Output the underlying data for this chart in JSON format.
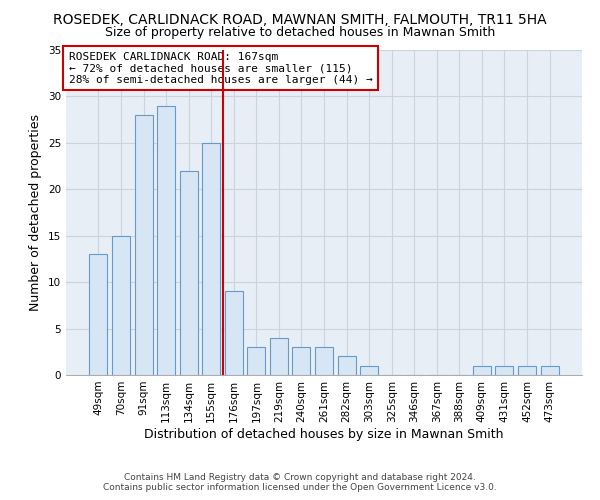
{
  "title": "ROSEDEK, CARLIDNACK ROAD, MAWNAN SMITH, FALMOUTH, TR11 5HA",
  "subtitle": "Size of property relative to detached houses in Mawnan Smith",
  "xlabel": "Distribution of detached houses by size in Mawnan Smith",
  "ylabel": "Number of detached properties",
  "categories": [
    "49sqm",
    "70sqm",
    "91sqm",
    "113sqm",
    "134sqm",
    "155sqm",
    "176sqm",
    "197sqm",
    "219sqm",
    "240sqm",
    "261sqm",
    "282sqm",
    "303sqm",
    "325sqm",
    "346sqm",
    "367sqm",
    "388sqm",
    "409sqm",
    "431sqm",
    "452sqm",
    "473sqm"
  ],
  "values": [
    13,
    15,
    28,
    29,
    22,
    25,
    9,
    3,
    4,
    3,
    3,
    2,
    1,
    0,
    0,
    0,
    0,
    1,
    1,
    1,
    1
  ],
  "bar_color": "#d6e6f5",
  "bar_edge_color": "#6699cc",
  "bar_width": 0.8,
  "ylim": [
    0,
    35
  ],
  "yticks": [
    0,
    5,
    10,
    15,
    20,
    25,
    30,
    35
  ],
  "property_line_x": 5.5,
  "property_line_color": "#cc0000",
  "annotation_title": "ROSEDEK CARLIDNACK ROAD: 167sqm",
  "annotation_line1": "← 72% of detached houses are smaller (115)",
  "annotation_line2": "28% of semi-detached houses are larger (44) →",
  "annotation_box_color": "#ffffff",
  "annotation_box_edge": "#cc0000",
  "footer_line1": "Contains HM Land Registry data © Crown copyright and database right 2024.",
  "footer_line2": "Contains public sector information licensed under the Open Government Licence v3.0.",
  "background_color": "#ffffff",
  "plot_bg_color": "#e8eef5",
  "grid_color": "#c8d4e0",
  "title_fontsize": 10,
  "subtitle_fontsize": 9,
  "axis_label_fontsize": 9,
  "tick_fontsize": 7.5,
  "footer_fontsize": 6.5,
  "annotation_fontsize": 8
}
